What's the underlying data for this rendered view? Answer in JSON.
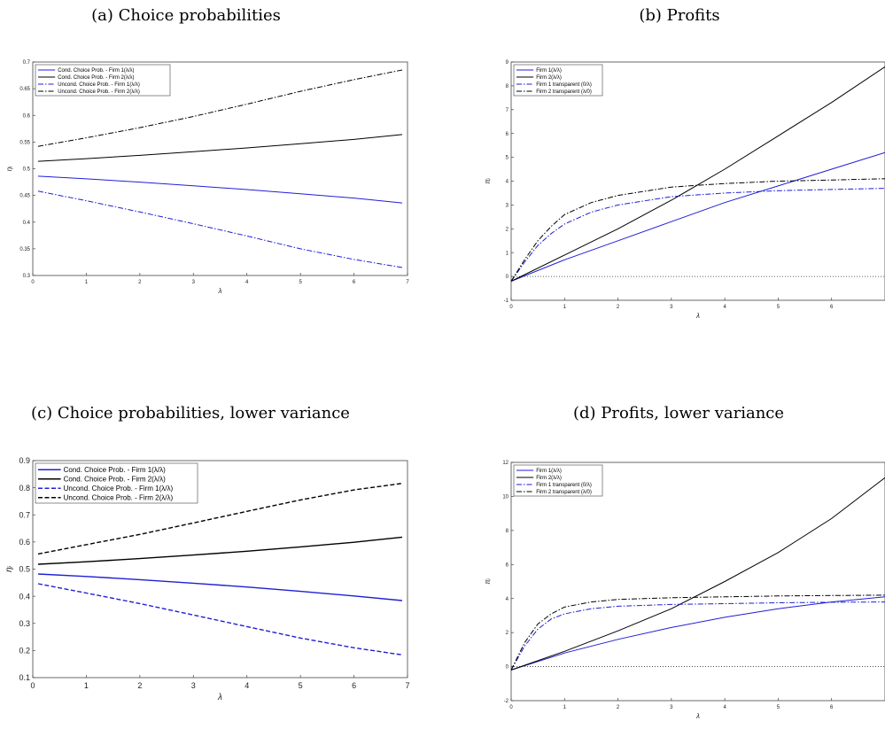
{
  "chart_data": [
    {
      "id": "a",
      "caption": "(a) Choice probabilities",
      "type": "line",
      "xlabel": "λ",
      "ylabel": "ηᵢ",
      "xlim": [
        0,
        7
      ],
      "ylim": [
        0.3,
        0.7
      ],
      "xticks": [
        0,
        1,
        2,
        3,
        4,
        5,
        6,
        7
      ],
      "yticks": [
        0.3,
        0.35,
        0.4,
        0.45,
        0.5,
        0.55,
        0.6,
        0.65,
        0.7
      ],
      "legend_position": "top-left",
      "grid": false,
      "series": [
        {
          "name": "Cond. Choice Prob. - Firm 1(λ/λ)",
          "color": "#1f1fd6",
          "dash": "solid",
          "x": [
            0.1,
            1,
            2,
            3,
            4,
            5,
            6,
            6.9
          ],
          "y": [
            0.486,
            0.481,
            0.475,
            0.468,
            0.461,
            0.453,
            0.445,
            0.436
          ]
        },
        {
          "name": "Cond. Choice Prob. - Firm 2(λ/λ)",
          "color": "#000000",
          "dash": "solid",
          "x": [
            0.1,
            1,
            2,
            3,
            4,
            5,
            6,
            6.9
          ],
          "y": [
            0.514,
            0.519,
            0.525,
            0.532,
            0.539,
            0.547,
            0.555,
            0.564
          ]
        },
        {
          "name": "Uncond. Choice Prob. - Firm 1(λ/λ)",
          "color": "#1f1fd6",
          "dash": "dashdot",
          "x": [
            0.1,
            1,
            2,
            3,
            4,
            5,
            6,
            6.9
          ],
          "y": [
            0.458,
            0.44,
            0.419,
            0.397,
            0.374,
            0.35,
            0.33,
            0.315
          ]
        },
        {
          "name": "Uncond. Choice Prob. - Firm 2(λ/λ)",
          "color": "#000000",
          "dash": "dashdot",
          "x": [
            0.1,
            1,
            2,
            3,
            4,
            5,
            6,
            6.9
          ],
          "y": [
            0.542,
            0.558,
            0.577,
            0.598,
            0.621,
            0.645,
            0.667,
            0.685
          ]
        }
      ]
    },
    {
      "id": "b",
      "caption": "(b) Profits",
      "type": "line",
      "xlabel": "λ",
      "ylabel": "πᵢ",
      "xlim": [
        0,
        7
      ],
      "ylim": [
        -1,
        9
      ],
      "xticks": [
        0,
        1,
        2,
        3,
        4,
        5,
        6
      ],
      "yticks": [
        -1,
        0,
        1,
        2,
        3,
        4,
        5,
        6,
        7,
        8,
        9
      ],
      "legend_position": "top-left",
      "grid": false,
      "reference_line_y": 0,
      "series": [
        {
          "name": "Firm 1(λ/λ)",
          "color": "#1f1fd6",
          "dash": "solid",
          "x": [
            0,
            1,
            2,
            3,
            4,
            5,
            6,
            7
          ],
          "y": [
            -0.2,
            0.7,
            1.5,
            2.3,
            3.1,
            3.8,
            4.5,
            5.2
          ]
        },
        {
          "name": "Firm 2(λ/λ)",
          "color": "#000000",
          "dash": "solid",
          "x": [
            0,
            1,
            2,
            3,
            4,
            5,
            6,
            7
          ],
          "y": [
            -0.2,
            0.9,
            2.0,
            3.2,
            4.5,
            5.9,
            7.3,
            8.8
          ]
        },
        {
          "name": "Firm 1 transparent (0/λ)",
          "color": "#1f1fd6",
          "dash": "dashdot",
          "x": [
            0,
            0.25,
            0.5,
            0.75,
            1,
            1.5,
            2,
            3,
            4,
            5,
            6,
            7
          ],
          "y": [
            -0.2,
            0.6,
            1.3,
            1.8,
            2.2,
            2.7,
            3.0,
            3.35,
            3.5,
            3.6,
            3.65,
            3.7
          ]
        },
        {
          "name": "Firm 2 transparent (λ/0)",
          "color": "#000000",
          "dash": "dashdot",
          "x": [
            0,
            0.25,
            0.5,
            0.75,
            1,
            1.5,
            2,
            3,
            4,
            5,
            6,
            7
          ],
          "y": [
            -0.2,
            0.7,
            1.5,
            2.1,
            2.6,
            3.1,
            3.4,
            3.75,
            3.9,
            4.0,
            4.05,
            4.1
          ]
        }
      ]
    },
    {
      "id": "c",
      "caption": "(c) Choice probabilities, lower variance",
      "type": "line",
      "xlabel": "λ",
      "ylabel": "ηᵢ",
      "xlim": [
        0,
        7
      ],
      "ylim": [
        0.1,
        0.9
      ],
      "xticks": [
        0,
        1,
        2,
        3,
        4,
        5,
        6,
        7
      ],
      "yticks": [
        0.1,
        0.2,
        0.3,
        0.4,
        0.5,
        0.6,
        0.7,
        0.8,
        0.9
      ],
      "legend_position": "top-left",
      "grid": false,
      "series": [
        {
          "name": "Cond. Choice Prob. - Firm 1(λ/λ)",
          "color": "#1f1fd6",
          "dash": "solid",
          "x": [
            0.1,
            1,
            2,
            3,
            4,
            5,
            6,
            6.9
          ],
          "y": [
            0.482,
            0.473,
            0.461,
            0.448,
            0.434,
            0.418,
            0.401,
            0.384
          ]
        },
        {
          "name": "Cond. Choice Prob. - Firm 2(λ/λ)",
          "color": "#000000",
          "dash": "solid",
          "x": [
            0.1,
            1,
            2,
            3,
            4,
            5,
            6,
            6.9
          ],
          "y": [
            0.518,
            0.527,
            0.539,
            0.552,
            0.566,
            0.582,
            0.599,
            0.618
          ]
        },
        {
          "name": "Uncond. Choice Prob. - Firm 1(λ/λ)",
          "color": "#1f1fd6",
          "dash": "dashed",
          "x": [
            0.1,
            1,
            2,
            3,
            4,
            5,
            6,
            6.9
          ],
          "y": [
            0.446,
            0.412,
            0.373,
            0.331,
            0.288,
            0.246,
            0.21,
            0.184
          ]
        },
        {
          "name": "Uncond. Choice Prob. - Firm 2(λ/λ)",
          "color": "#000000",
          "dash": "dashed",
          "x": [
            0.1,
            1,
            2,
            3,
            4,
            5,
            6,
            6.9
          ],
          "y": [
            0.556,
            0.59,
            0.628,
            0.67,
            0.713,
            0.755,
            0.792,
            0.816
          ]
        }
      ]
    },
    {
      "id": "d",
      "caption": "(d) Profits, lower variance",
      "type": "line",
      "xlabel": "λ",
      "ylabel": "πᵢ",
      "xlim": [
        0,
        7
      ],
      "ylim": [
        -2,
        12
      ],
      "xticks": [
        0,
        1,
        2,
        3,
        4,
        5,
        6
      ],
      "yticks": [
        -2,
        0,
        2,
        4,
        6,
        8,
        10,
        12
      ],
      "legend_position": "top-left",
      "grid": false,
      "reference_line_y": 0,
      "series": [
        {
          "name": "Firm 1(λ/λ)",
          "color": "#1f1fd6",
          "dash": "solid",
          "x": [
            0,
            1,
            2,
            3,
            4,
            5,
            6,
            7
          ],
          "y": [
            -0.2,
            0.8,
            1.6,
            2.3,
            2.9,
            3.4,
            3.8,
            4.1
          ]
        },
        {
          "name": "Firm 2(λ/λ)",
          "color": "#000000",
          "dash": "solid",
          "x": [
            0,
            1,
            2,
            3,
            4,
            5,
            6,
            7
          ],
          "y": [
            -0.2,
            0.9,
            2.1,
            3.4,
            5.0,
            6.7,
            8.7,
            11.1
          ]
        },
        {
          "name": "Firm 1 transparent (0/λ)",
          "color": "#1f1fd6",
          "dash": "dashdot",
          "x": [
            0,
            0.25,
            0.5,
            0.75,
            1,
            1.5,
            2,
            3,
            4,
            5,
            6,
            7
          ],
          "y": [
            -0.2,
            1.2,
            2.2,
            2.8,
            3.1,
            3.4,
            3.55,
            3.65,
            3.7,
            3.75,
            3.78,
            3.8
          ]
        },
        {
          "name": "Firm 2 transparent (λ/0)",
          "color": "#000000",
          "dash": "dashdot",
          "x": [
            0,
            0.25,
            0.5,
            0.75,
            1,
            1.5,
            2,
            3,
            4,
            5,
            6,
            7
          ],
          "y": [
            -0.2,
            1.4,
            2.5,
            3.1,
            3.5,
            3.8,
            3.95,
            4.05,
            4.1,
            4.15,
            4.18,
            4.2
          ]
        }
      ]
    }
  ]
}
